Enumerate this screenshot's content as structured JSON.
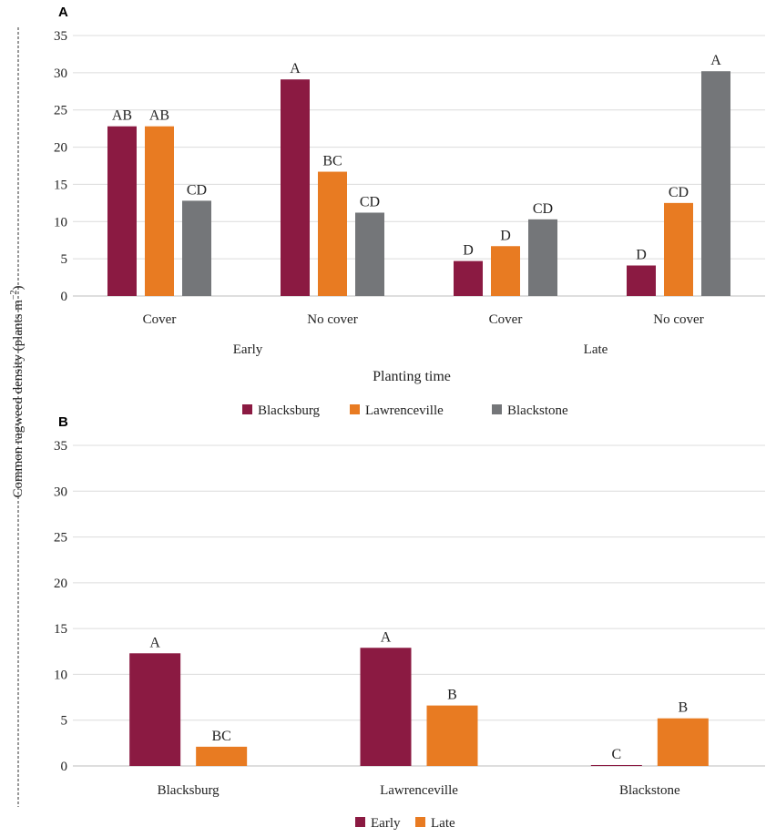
{
  "shared": {
    "ylabel_text": "Common ragweed density  (plants m",
    "ylabel_sup": "−2",
    "ylabel_close": ")"
  },
  "colors": {
    "Blacksburg": "#8b1a42",
    "Lawrenceville": "#e87b22",
    "Blackstone": "#747679",
    "Early": "#8b1a42",
    "Late": "#e87b22"
  },
  "chart_data": [
    {
      "panel_label": "A",
      "type": "bar",
      "categories": [
        "Cover",
        "No cover",
        "Cover",
        "No cover"
      ],
      "groups": [
        {
          "label": "Early",
          "categories": [
            "Cover",
            "No cover"
          ]
        },
        {
          "label": "Late",
          "categories": [
            "Cover",
            "No cover"
          ]
        }
      ],
      "series": [
        {
          "name": "Blacksburg",
          "values": [
            22.8,
            29.1,
            4.7,
            4.1
          ],
          "labels": [
            "AB",
            "A",
            "D",
            "D"
          ]
        },
        {
          "name": "Lawrenceville",
          "values": [
            22.8,
            16.7,
            6.7,
            12.5
          ],
          "labels": [
            "AB",
            "BC",
            "D",
            "CD"
          ]
        },
        {
          "name": "Blackstone",
          "values": [
            12.8,
            11.2,
            10.3,
            30.2
          ],
          "labels": [
            "CD",
            "CD",
            "CD",
            "A"
          ]
        }
      ],
      "xlabel": "Planting time",
      "ylim": [
        0,
        35
      ],
      "yticks": [
        0,
        5,
        10,
        15,
        20,
        25,
        30,
        35
      ],
      "grid": true,
      "legend": "bottom"
    },
    {
      "panel_label": "B",
      "type": "bar",
      "categories": [
        "Blacksburg",
        "Lawrenceville",
        "Blackstone"
      ],
      "series": [
        {
          "name": "Early",
          "values": [
            12.3,
            12.9,
            0.1
          ],
          "labels": [
            "A",
            "A",
            "C"
          ]
        },
        {
          "name": "Late",
          "values": [
            2.1,
            6.6,
            5.2
          ],
          "labels": [
            "BC",
            "B",
            "B"
          ]
        }
      ],
      "xlabel": "",
      "ylim": [
        0,
        35
      ],
      "yticks": [
        0,
        5,
        10,
        15,
        20,
        25,
        30,
        35
      ],
      "grid": true,
      "legend": "bottom"
    }
  ]
}
